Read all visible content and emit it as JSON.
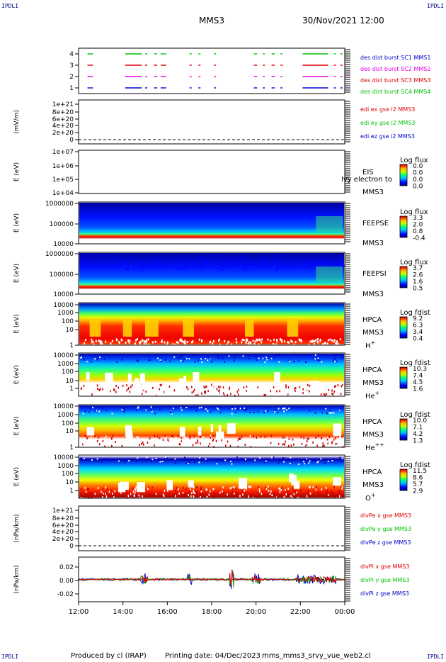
{
  "corner_label": "IPDLI",
  "header": {
    "spacecraft": "MMS3",
    "datetime": "30/Nov/2021 12:00"
  },
  "footer": {
    "produced": "Produced by cl (IRAP)",
    "printing": "Printing date: 04/Dec/2023",
    "script": "mms_mms3_srvy_vue_web2.cl"
  },
  "colors": {
    "red": "#e00000",
    "green": "#00c000",
    "blue": "#0000d0",
    "magenta": "#e000e0"
  },
  "chart_data": {
    "type": "multi-panel time series / spectrograms",
    "x_ticks": [
      "12:00",
      "14:00",
      "16:00",
      "18:00",
      "20:00",
      "22:00",
      "00:00"
    ],
    "x_range_hours": [
      12,
      24
    ],
    "panels": [
      {
        "id": "burst",
        "type": "segments",
        "y_ticks": [
          "4",
          "3",
          "2",
          "1"
        ],
        "legend": [
          {
            "label": "des dist burst SC1 MMS1",
            "color": "#0000d0"
          },
          {
            "label": "des dist burst SC2 MMS2",
            "color": "#e000e0"
          },
          {
            "label": "des dist burst SC3 MMS3",
            "color": "#e00000"
          },
          {
            "label": "des dist burst SC4 MMS4",
            "color": "#00c000"
          }
        ],
        "segments": [
          [
            12.4,
            12.6
          ],
          [
            14.1,
            14.8
          ],
          [
            15.0,
            15.05
          ],
          [
            15.4,
            15.5
          ],
          [
            15.7,
            15.9
          ],
          [
            17.0,
            17.05
          ],
          [
            17.4,
            17.45
          ],
          [
            18.1,
            18.15
          ],
          [
            19.9,
            20.0
          ],
          [
            20.3,
            20.35
          ],
          [
            20.7,
            20.8
          ],
          [
            21.1,
            21.15
          ],
          [
            22.1,
            23.2
          ],
          [
            23.5,
            23.55
          ],
          [
            23.8,
            23.85
          ]
        ]
      },
      {
        "id": "edi",
        "type": "line",
        "ylabel": "(mV/m)",
        "y_ticks": [
          "1e+21",
          "8e+20",
          "6e+20",
          "4e+20",
          "2e+20",
          "0"
        ],
        "legend": [
          {
            "label": "edi ex gse l2 MMS3",
            "color": "#e00000"
          },
          {
            "label": "edi ey gse l2 MMS3",
            "color": "#00c000"
          },
          {
            "label": "edi ez gse l2 MMS3",
            "color": "#0000d0"
          }
        ]
      },
      {
        "id": "eis",
        "type": "spectrogram",
        "ylabel": "E (eV)",
        "y_ticks": [
          "1e+07",
          "1e+06",
          "1e+05",
          "1e+04"
        ],
        "label_lines": [
          "EIS",
          "MMS3"
        ],
        "overlay": "lvy electron to",
        "cbar_title": "Log flux",
        "cbar_ticks": [
          "0.0",
          "0.0",
          "0.0",
          "0.0"
        ]
      },
      {
        "id": "feeps-e",
        "type": "spectrogram",
        "ylabel": "E (eV)",
        "y_ticks": [
          "1000000",
          "100000",
          "10000"
        ],
        "label_lines": [
          "FEEPSE",
          "MMS3"
        ],
        "cbar_title": "Log flux",
        "cbar_ticks": [
          "3.3",
          "2.0",
          "0.8",
          "-0.4"
        ]
      },
      {
        "id": "feeps-i",
        "type": "spectrogram",
        "ylabel": "E (eV)",
        "y_ticks": [
          "1000000",
          "100000",
          "10000"
        ],
        "label_lines": [
          "FEEPSI",
          "MMS3"
        ],
        "cbar_title": "Log flux",
        "cbar_ticks": [
          "3.7",
          "2.6",
          "1.6",
          "0.5"
        ]
      },
      {
        "id": "hpca-h",
        "type": "spectrogram",
        "ylabel": "E (eV)",
        "y_ticks": [
          "10000",
          "1000",
          "100",
          "10",
          "1"
        ],
        "label_lines": [
          "HPCA",
          "MMS3"
        ],
        "species": "H",
        "charge": "+",
        "cbar_title": "Log fdist",
        "cbar_ticks": [
          "9.2",
          "6.3",
          "3.4",
          "0.4"
        ]
      },
      {
        "id": "hpca-he",
        "type": "spectrogram",
        "ylabel": "E (eV)",
        "y_ticks": [
          "10000",
          "1000",
          "100",
          "10",
          "1"
        ],
        "label_lines": [
          "HPCA",
          "MMS3"
        ],
        "species": "He",
        "charge": "+",
        "cbar_title": "Log fdist",
        "cbar_ticks": [
          "10.3",
          "7.4",
          "4.5",
          "1.6"
        ]
      },
      {
        "id": "hpca-he2",
        "type": "spectrogram",
        "ylabel": "E (eV)",
        "y_ticks": [
          "10000",
          "1000",
          "100",
          "10",
          "1"
        ],
        "label_lines": [
          "HPCA",
          "MMS3"
        ],
        "species": "He",
        "charge": "++",
        "cbar_title": "Log fdist",
        "cbar_ticks": [
          "10.0",
          "7.1",
          "4.2",
          "1.3"
        ]
      },
      {
        "id": "hpca-o",
        "type": "spectrogram",
        "ylabel": "E (eV)",
        "y_ticks": [
          "10000",
          "1000",
          "100",
          "10",
          "1"
        ],
        "label_lines": [
          "HPCA",
          "MMS3"
        ],
        "species": "O",
        "charge": "+",
        "cbar_title": "Log fdist",
        "cbar_ticks": [
          "11.5",
          "8.6",
          "5.7",
          "2.9"
        ]
      },
      {
        "id": "divpe",
        "type": "line",
        "ylabel": "(nPa/km)",
        "y_ticks": [
          "1e+21",
          "8e+20",
          "6e+20",
          "4e+20",
          "2e+20",
          "0"
        ],
        "legend": [
          {
            "label": "divPe x gse MMS3",
            "color": "#e00000"
          },
          {
            "label": "divPe y gse MMS3",
            "color": "#00c000"
          },
          {
            "label": "divPe z gse MMS3",
            "color": "#0000d0"
          }
        ]
      },
      {
        "id": "divpi",
        "type": "line",
        "ylabel": "(nPa/km)",
        "y_ticks": [
          "0.02",
          "0.00",
          "-0.02"
        ],
        "y_range": [
          -0.03,
          0.03
        ],
        "legend": [
          {
            "label": "divPi x gse MMS3",
            "color": "#e00000"
          },
          {
            "label": "divPi y gse MMS3",
            "color": "#00c000"
          },
          {
            "label": "divPi z gse MMS3",
            "color": "#0000d0"
          }
        ]
      }
    ]
  }
}
